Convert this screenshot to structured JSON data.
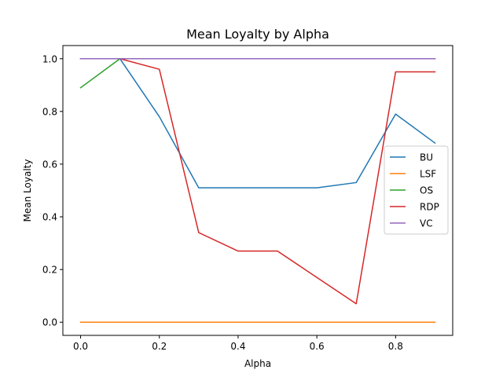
{
  "chart_data": {
    "type": "line",
    "title": "Mean Loyalty by Alpha",
    "xlabel": "Alpha",
    "ylabel": "Mean Loyalty",
    "xlim": [
      -0.045,
      0.945
    ],
    "ylim": [
      -0.05,
      1.05
    ],
    "xticks": [
      0.0,
      0.2,
      0.4,
      0.6,
      0.8
    ],
    "xtick_labels": [
      "0.0",
      "0.2",
      "0.4",
      "0.6",
      "0.8"
    ],
    "yticks": [
      0.0,
      0.2,
      0.4,
      0.6,
      0.8,
      1.0
    ],
    "ytick_labels": [
      "0.0",
      "0.2",
      "0.4",
      "0.6",
      "0.8",
      "1.0"
    ],
    "grid": false,
    "legend_position": "center-right",
    "x": [
      0.0,
      0.1,
      0.2,
      0.3,
      0.4,
      0.5,
      0.6,
      0.7,
      0.8,
      0.9
    ],
    "series": [
      {
        "name": "BU",
        "color": "#1f77b4",
        "values": [
          1.0,
          1.0,
          0.78,
          0.51,
          0.51,
          0.51,
          0.51,
          0.53,
          0.79,
          0.68
        ]
      },
      {
        "name": "LSF",
        "color": "#ff7f0e",
        "values": [
          0.0,
          0.0,
          0.0,
          0.0,
          0.0,
          0.0,
          0.0,
          0.0,
          0.0,
          0.0
        ]
      },
      {
        "name": "OS",
        "color": "#2ca02c",
        "values": [
          0.89,
          1.0,
          1.0,
          1.0,
          1.0,
          1.0,
          1.0,
          1.0,
          1.0,
          1.0
        ]
      },
      {
        "name": "RDP",
        "color": "#d62728",
        "values": [
          1.0,
          1.0,
          0.96,
          0.34,
          0.27,
          0.27,
          0.17,
          0.07,
          0.95,
          0.95
        ]
      },
      {
        "name": "VC",
        "color": "#9467bd",
        "values": [
          1.0,
          1.0,
          1.0,
          1.0,
          1.0,
          1.0,
          1.0,
          1.0,
          1.0,
          1.0
        ]
      }
    ]
  }
}
